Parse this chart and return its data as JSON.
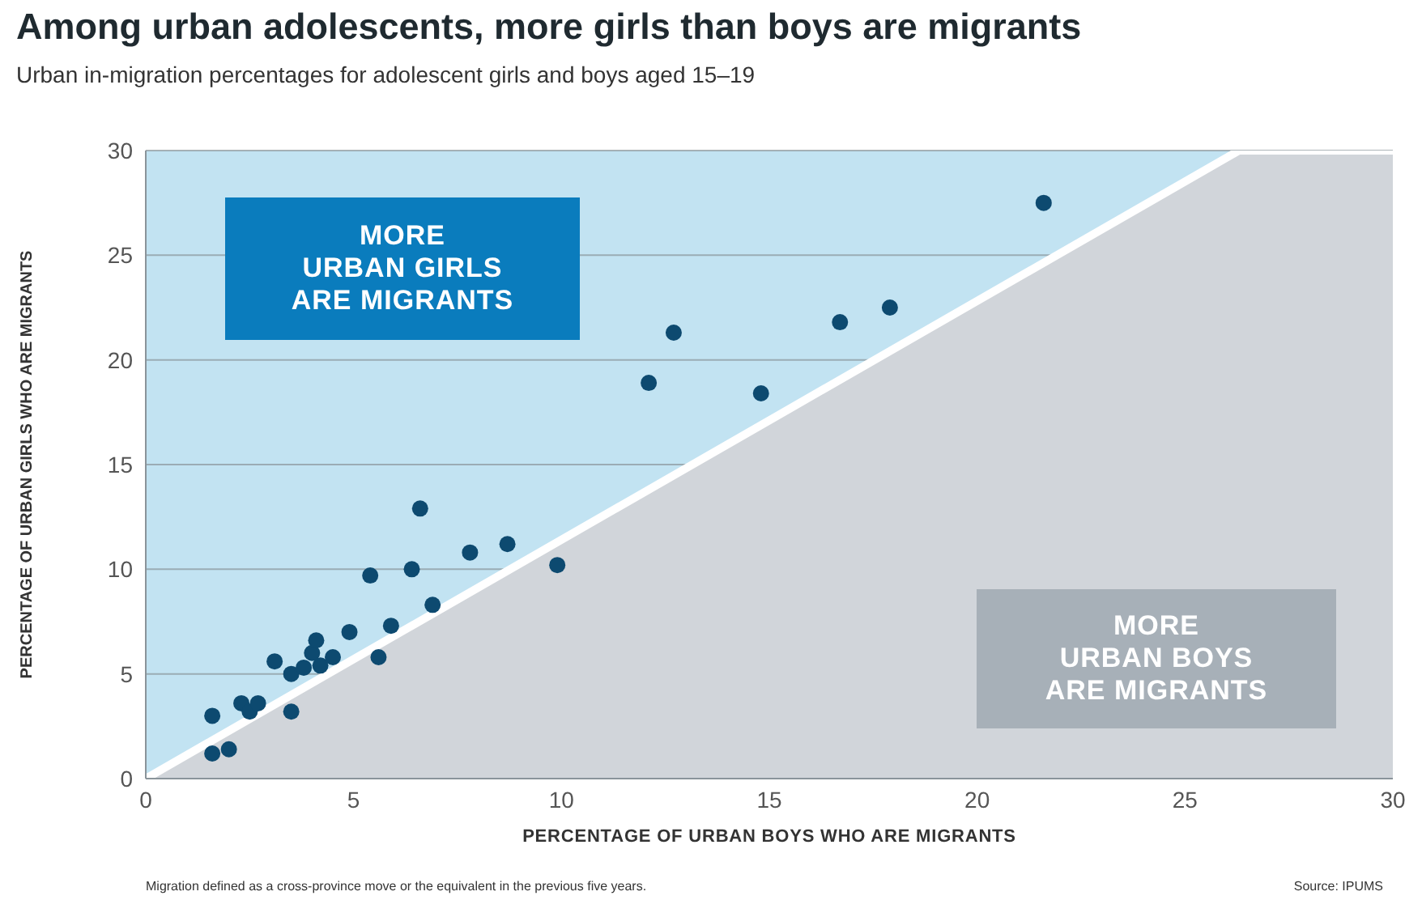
{
  "chart_data": {
    "type": "scatter",
    "title": "Among urban adolescents, more girls than boys are migrants",
    "subtitle": "Urban in-migration percentages for adolescent girls and boys aged 15–19",
    "xlabel": "PERCENTAGE OF URBAN BOYS WHO ARE MIGRANTS",
    "ylabel": "PERCENTAGE OF URBAN GIRLS WHO ARE MIGRANTS",
    "annotations": [
      "MORE\nURBAN GIRLS\nARE MIGRANTS",
      "MORE\nURBAN BOYS\nARE MIGRANTS",
      "Migration defined as a cross-province move or the equivalent in the previous five years.",
      "Source: IPUMS"
    ],
    "series": [
      {
        "type": "area",
        "color": "#d1d5da",
        "x": [
          0,
          26.3,
          30
        ],
        "values": [
          0,
          30,
          30
        ]
      },
      {
        "type": "scatter",
        "marker": "circle",
        "color": "#0d4a70",
        "x": [
          1.6,
          1.6,
          2.0,
          2.3,
          2.5,
          2.7,
          3.1,
          3.5,
          3.5,
          3.8,
          4.0,
          4.1,
          4.2,
          4.5,
          4.9,
          5.4,
          5.6,
          5.9,
          6.4,
          6.6,
          6.9,
          7.8,
          8.7,
          9.9,
          12.1,
          12.7,
          14.8,
          16.7,
          17.9,
          21.6
        ],
        "values": [
          3.0,
          1.2,
          1.4,
          3.6,
          3.2,
          3.6,
          5.6,
          3.2,
          5.0,
          5.3,
          6.0,
          6.6,
          5.4,
          5.8,
          7.0,
          9.7,
          5.8,
          7.3,
          10.0,
          12.9,
          8.3,
          10.8,
          11.2,
          10.2,
          18.9,
          21.3,
          18.4,
          21.8,
          22.5,
          27.5
        ]
      }
    ],
    "xlim": [
      0,
      30
    ],
    "ylim": [
      0,
      30
    ],
    "xticks": [
      0,
      5,
      10,
      15,
      20,
      25,
      30
    ],
    "yticks": [
      0,
      5,
      10,
      15,
      20,
      25,
      30
    ],
    "grid": "y",
    "legend": false
  }
}
